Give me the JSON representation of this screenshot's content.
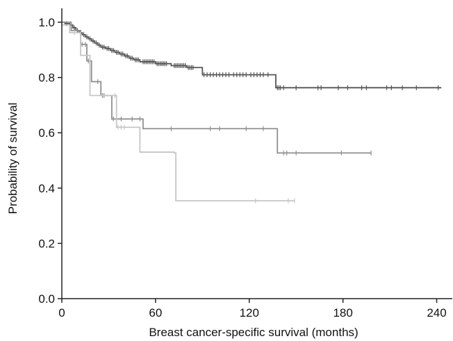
{
  "chart_data": {
    "type": "line",
    "title": "",
    "xlabel": "Breast cancer-specific survival (months)",
    "ylabel": "Probability of survival",
    "xlim": [
      0,
      250
    ],
    "ylim": [
      0,
      1.05
    ],
    "xticks": [
      0,
      60,
      120,
      180,
      240
    ],
    "yticks": [
      0.0,
      0.2,
      0.4,
      0.6,
      0.8,
      1.0
    ],
    "xtick_labels": [
      "0",
      "60",
      "120",
      "180",
      "240"
    ],
    "ytick_labels": [
      "0.0",
      "0.2",
      "0.4",
      "0.6",
      "0.8",
      "1.0"
    ],
    "grid": false,
    "legend": "none",
    "series": [
      {
        "color": "#555555",
        "steps": [
          [
            0,
            1.0
          ],
          [
            2,
            0.995
          ],
          [
            5,
            0.99
          ],
          [
            7,
            0.98
          ],
          [
            9,
            0.97
          ],
          [
            11,
            0.962
          ],
          [
            13,
            0.955
          ],
          [
            15,
            0.947
          ],
          [
            17,
            0.94
          ],
          [
            19,
            0.932
          ],
          [
            21,
            0.925
          ],
          [
            23,
            0.917
          ],
          [
            25,
            0.91
          ],
          [
            28,
            0.905
          ],
          [
            31,
            0.898
          ],
          [
            34,
            0.891
          ],
          [
            37,
            0.885
          ],
          [
            40,
            0.878
          ],
          [
            43,
            0.87
          ],
          [
            46,
            0.864
          ],
          [
            50,
            0.857
          ],
          [
            60,
            0.85
          ],
          [
            70,
            0.843
          ],
          [
            80,
            0.836
          ],
          [
            90,
            0.81
          ],
          [
            137,
            0.763
          ],
          [
            243,
            0.763
          ]
        ],
        "censor": [
          3,
          6,
          8,
          10,
          12,
          14,
          16,
          18,
          20,
          22,
          24,
          26,
          27,
          29,
          30,
          32,
          33,
          35,
          36,
          38,
          39,
          41,
          42,
          44,
          45,
          47,
          48,
          49,
          52,
          53,
          54,
          55,
          56,
          57,
          58,
          59,
          61,
          62,
          63,
          64,
          65,
          66,
          67,
          72,
          73,
          74,
          75,
          76,
          77,
          78,
          79,
          81,
          82,
          83,
          84,
          91,
          93,
          95,
          97,
          99,
          101,
          103,
          105,
          107,
          110,
          112,
          114,
          116,
          118,
          121,
          123,
          125,
          127,
          129,
          132,
          138,
          139,
          140,
          142,
          150,
          164,
          166,
          177,
          183,
          192,
          195,
          208,
          211,
          218,
          227,
          241
        ]
      },
      {
        "color": "#909090",
        "steps": [
          [
            0,
            1.0
          ],
          [
            6,
            0.97
          ],
          [
            12,
            0.92
          ],
          [
            16,
            0.86
          ],
          [
            19,
            0.785
          ],
          [
            25,
            0.735
          ],
          [
            32,
            0.65
          ],
          [
            52,
            0.615
          ],
          [
            138,
            0.527
          ],
          [
            198,
            0.527
          ]
        ],
        "censor": [
          13,
          15,
          17,
          18,
          23,
          26,
          27,
          33,
          38,
          45,
          50,
          70,
          95,
          101,
          118,
          129,
          142,
          144,
          150,
          179,
          198
        ]
      },
      {
        "color": "#c6c6c6",
        "steps": [
          [
            0,
            0.99
          ],
          [
            5,
            0.962
          ],
          [
            9,
            0.962
          ],
          [
            12,
            0.88
          ],
          [
            18,
            0.735
          ],
          [
            33,
            0.735
          ],
          [
            35,
            0.62
          ],
          [
            45,
            0.62
          ],
          [
            50,
            0.53
          ],
          [
            72,
            0.527
          ],
          [
            73,
            0.354
          ],
          [
            149,
            0.354
          ]
        ],
        "censor": [
          8,
          34,
          36,
          38,
          40,
          124,
          145,
          149
        ]
      }
    ]
  }
}
